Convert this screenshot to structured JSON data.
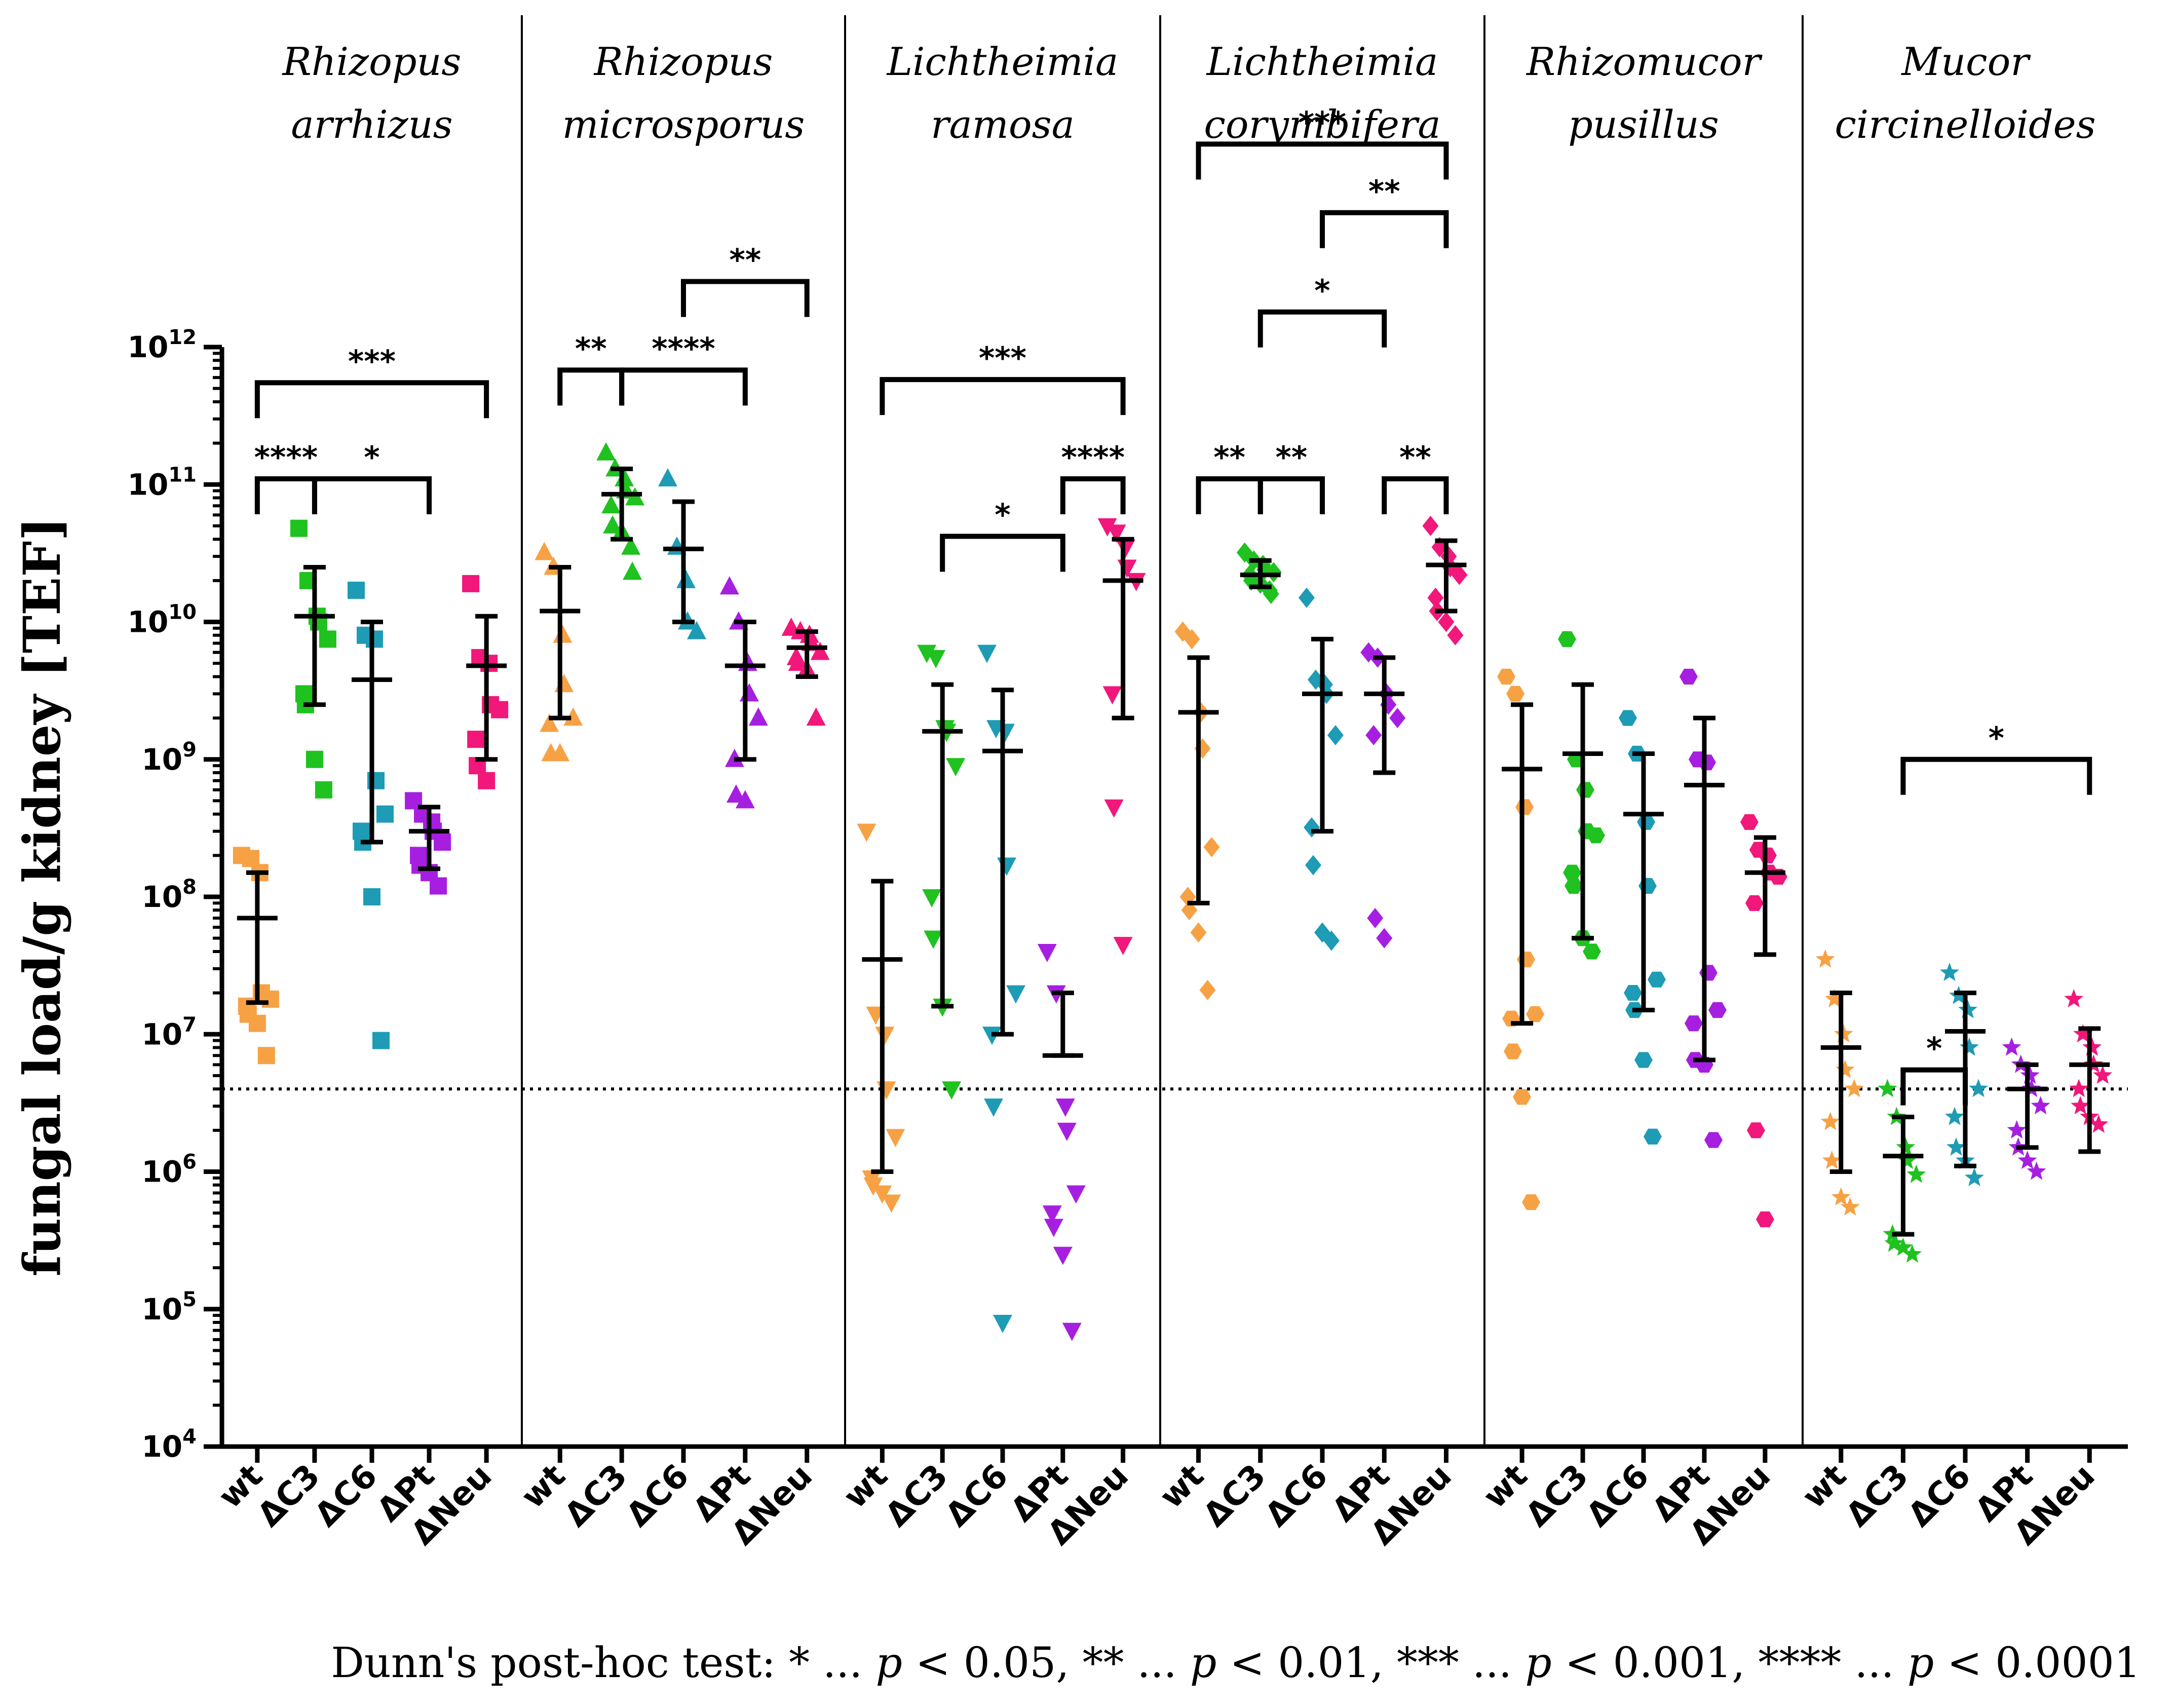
{
  "chart_data": {
    "type": "scatter",
    "title": "",
    "ylabel": "fungal load/g kidney [TEF]",
    "yscale": "log10",
    "ylim_exp": [
      4,
      12
    ],
    "ytick_base": "10",
    "ytick_exponents": [
      "4",
      "5",
      "6",
      "7",
      "8",
      "9",
      "10",
      "11",
      "12"
    ],
    "detection_limit": 4000000.0,
    "groups": [
      "wt",
      "ΔC3",
      "ΔC6",
      "ΔPt",
      "ΔNeu"
    ],
    "group_colors": [
      "#f7a145",
      "#1fc21f",
      "#1e9bb5",
      "#a61fe0",
      "#f2177a"
    ],
    "footnote": {
      "prefix": "Dunn's post-hoc test: * ... ",
      "p": "p",
      "t1": " < 0.05, ** ... ",
      "t2": " < 0.01, *** ... ",
      "t3": " < 0.001, **** ... ",
      "t4": " < 0.0001"
    },
    "panels": [
      {
        "name_line1": "Rhizopus",
        "name_line2": "arrhizus",
        "marker": "square",
        "series": [
          {
            "name": "wt",
            "median": 70000000.0,
            "q1": 17000000.0,
            "q3": 150000000.0,
            "points": [
              200000000.0,
              190000000.0,
              150000000.0,
              20000000.0,
              18000000.0,
              16000000.0,
              14000000.0,
              12000000.0,
              7000000.0
            ]
          },
          {
            "name": "ΔC3",
            "median": 11000000000.0,
            "q1": 2500000000.0,
            "q3": 25000000000.0,
            "points": [
              48000000000.0,
              20000000000.0,
              11000000000.0,
              10000000000.0,
              7500000000.0,
              3000000000.0,
              2500000000.0,
              1000000000.0,
              600000000.0
            ]
          },
          {
            "name": "ΔC6",
            "median": 3800000000.0,
            "q1": 250000000.0,
            "q3": 10000000000.0,
            "points": [
              17000000000.0,
              8000000000.0,
              7500000000.0,
              700000000.0,
              400000000.0,
              300000000.0,
              250000000.0,
              100000000.0,
              9000000.0
            ]
          },
          {
            "name": "ΔPt",
            "median": 300000000.0,
            "q1": 160000000.0,
            "q3": 450000000.0,
            "points": [
              500000000.0,
              400000000.0,
              350000000.0,
              300000000.0,
              250000000.0,
              200000000.0,
              170000000.0,
              150000000.0,
              120000000.0
            ]
          },
          {
            "name": "ΔNeu",
            "median": 4800000000.0,
            "q1": 1000000000.0,
            "q3": 11000000000.0,
            "points": [
              19000000000.0,
              5500000000.0,
              5000000000.0,
              2500000000.0,
              2300000000.0,
              1400000000.0,
              900000000.0,
              700000000.0
            ]
          }
        ],
        "sig": [
          {
            "a": 0,
            "b": 4,
            "y": 550000000000.0,
            "label": "***"
          },
          {
            "a": 0,
            "b": 1,
            "y": 110000000000.0,
            "label": "****"
          },
          {
            "a": 1,
            "b": 3,
            "y": 110000000000.0,
            "label": "*"
          }
        ]
      },
      {
        "name_line1": "Rhizopus",
        "name_line2": "microsporus",
        "marker": "triangle-up",
        "series": [
          {
            "name": "wt",
            "median": 12000000000.0,
            "q1": 2000000000.0,
            "q3": 25000000000.0,
            "points": [
              32000000000.0,
              25000000000.0,
              8000000000.0,
              3500000000.0,
              2000000000.0,
              1800000000.0,
              1100000000.0,
              1100000000.0
            ]
          },
          {
            "name": "ΔC3",
            "median": 85000000000.0,
            "q1": 40000000000.0,
            "q3": 130000000000.0,
            "points": [
              170000000000.0,
              130000000000.0,
              110000000000.0,
              90000000000.0,
              80000000000.0,
              70000000000.0,
              50000000000.0,
              45000000000.0,
              35000000000.0,
              23000000000.0
            ]
          },
          {
            "name": "ΔC6",
            "median": 34000000000.0,
            "q1": 10000000000.0,
            "q3": 75000000000.0,
            "points": [
              110000000000.0,
              35000000000.0,
              20000000000.0,
              10000000000.0,
              8500000000.0
            ]
          },
          {
            "name": "ΔPt",
            "median": 4800000000.0,
            "q1": 1000000000.0,
            "q3": 10000000000.0,
            "points": [
              18000000000.0,
              10000000000.0,
              5000000000.0,
              3000000000.0,
              2000000000.0,
              1000000000.0,
              550000000.0,
              500000000.0
            ]
          },
          {
            "name": "ΔNeu",
            "median": 6500000000.0,
            "q1": 4000000000.0,
            "q3": 8500000000.0,
            "points": [
              9000000000.0,
              8500000000.0,
              8000000000.0,
              7000000000.0,
              6000000000.0,
              5500000000.0,
              5000000000.0,
              4500000000.0,
              2000000000.0
            ]
          }
        ],
        "sig": [
          {
            "a": 2,
            "b": 4,
            "y": 3000000000000.0,
            "label": "**"
          },
          {
            "a": 0,
            "b": 1,
            "y": 680000000000.0,
            "label": "**"
          },
          {
            "a": 1,
            "b": 3,
            "y": 680000000000.0,
            "label": "****"
          }
        ]
      },
      {
        "name_line1": "Lichtheimia",
        "name_line2": "ramosa",
        "marker": "triangle-down",
        "series": [
          {
            "name": "wt",
            "median": 35000000.0,
            "q1": 1000000.0,
            "q3": 130000000.0,
            "points": [
              300000000.0,
              14000000.0,
              10000000.0,
              4000000.0,
              1800000.0,
              900000.0,
              800000.0,
              700000.0,
              600000.0
            ]
          },
          {
            "name": "ΔC3",
            "median": 1600000000.0,
            "q1": 16000000.0,
            "q3": 3500000000.0,
            "points": [
              6000000000.0,
              5500000000.0,
              1700000000.0,
              1600000000.0,
              900000000.0,
              100000000.0,
              50000000.0,
              16000000.0,
              4000000.0
            ]
          },
          {
            "name": "ΔC6",
            "median": 1150000000.0,
            "q1": 10000000.0,
            "q3": 3200000000.0,
            "points": [
              6000000000.0,
              1700000000.0,
              1600000000.0,
              170000000.0,
              20000000.0,
              10000000.0,
              3000000.0,
              80000.0
            ]
          },
          {
            "name": "ΔPt",
            "median": 7000000.0,
            "q1": 7000000.0,
            "q3": 20000000.0,
            "points": [
              40000000.0,
              20000000.0,
              3000000.0,
              2000000.0,
              700000.0,
              500000.0,
              400000.0,
              250000.0,
              70000.0
            ]
          },
          {
            "name": "ΔNeu",
            "median": 20000000000.0,
            "q1": 2000000000.0,
            "q3": 40000000000.0,
            "points": [
              50000000000.0,
              45000000000.0,
              35000000000.0,
              25000000000.0,
              20000000000.0,
              3000000000.0,
              450000000.0,
              45000000.0
            ]
          }
        ],
        "sig": [
          {
            "a": 0,
            "b": 4,
            "y": 580000000000.0,
            "label": "***"
          },
          {
            "a": 3,
            "b": 4,
            "y": 110000000000.0,
            "label": "****"
          },
          {
            "a": 1,
            "b": 3,
            "y": 42000000000.0,
            "label": "*"
          }
        ]
      },
      {
        "name_line1": "Lichtheimia",
        "name_line2": "corymbifera",
        "marker": "diamond",
        "series": [
          {
            "name": "wt",
            "median": 2200000000.0,
            "q1": 90000000.0,
            "q3": 5500000000.0,
            "points": [
              8500000000.0,
              7500000000.0,
              2200000000.0,
              1200000000.0,
              230000000.0,
              100000000.0,
              80000000.0,
              55000000.0,
              21000000.0
            ]
          },
          {
            "name": "ΔC3",
            "median": 22000000000.0,
            "q1": 18000000000.0,
            "q3": 28000000000.0,
            "points": [
              32000000000.0,
              28000000000.0,
              26000000000.0,
              24000000000.0,
              23000000000.0,
              22000000000.0,
              20000000000.0,
              19000000000.0,
              17000000000.0,
              16000000000.0
            ]
          },
          {
            "name": "ΔC6",
            "median": 3000000000.0,
            "q1": 300000000.0,
            "q3": 7500000000.0,
            "points": [
              15000000000.0,
              3800000000.0,
              3500000000.0,
              3000000000.0,
              1500000000.0,
              320000000.0,
              170000000.0,
              55000000.0,
              48000000.0
            ]
          },
          {
            "name": "ΔPt",
            "median": 3000000000.0,
            "q1": 800000000.0,
            "q3": 5500000000.0,
            "points": [
              6000000000.0,
              5500000000.0,
              3000000000.0,
              2500000000.0,
              2000000000.0,
              1500000000.0,
              70000000.0,
              50000000.0
            ]
          },
          {
            "name": "ΔNeu",
            "median": 26000000000.0,
            "q1": 12000000000.0,
            "q3": 39000000000.0,
            "points": [
              50000000000.0,
              35000000000.0,
              30000000000.0,
              25000000000.0,
              22000000000.0,
              15000000000.0,
              12000000000.0,
              10000000000.0,
              8000000000.0
            ]
          }
        ],
        "sig": [
          {
            "a": 0,
            "b": 4,
            "y": 30000000000000.0,
            "label": "***"
          },
          {
            "a": 2,
            "b": 4,
            "y": 9500000000000.0,
            "label": "**"
          },
          {
            "a": 1,
            "b": 3,
            "y": 1800000000000.0,
            "label": "*"
          },
          {
            "a": 0,
            "b": 1,
            "y": 110000000000.0,
            "label": "**"
          },
          {
            "a": 1,
            "b": 2,
            "y": 110000000000.0,
            "label": "**"
          },
          {
            "a": 3,
            "b": 4,
            "y": 110000000000.0,
            "label": "**"
          }
        ]
      },
      {
        "name_line1": "Rhizomucor",
        "name_line2": "pusillus",
        "marker": "hexagon",
        "series": [
          {
            "name": "wt",
            "median": 850000000.0,
            "q1": 12000000.0,
            "q3": 2500000000.0,
            "points": [
              4000000000.0,
              3000000000.0,
              450000000.0,
              35000000.0,
              14000000.0,
              13000000.0,
              7500000.0,
              3500000.0,
              600000.0
            ]
          },
          {
            "name": "ΔC3",
            "median": 1100000000.0,
            "q1": 50000000.0,
            "q3": 3500000000.0,
            "points": [
              7500000000.0,
              1000000000.0,
              600000000.0,
              300000000.0,
              280000000.0,
              150000000.0,
              120000000.0,
              50000000.0,
              40000000.0
            ]
          },
          {
            "name": "ΔC6",
            "median": 400000000.0,
            "q1": 15000000.0,
            "q3": 1100000000.0,
            "points": [
              2000000000.0,
              1100000000.0,
              350000000.0,
              120000000.0,
              25000000.0,
              20000000.0,
              15000000.0,
              6500000.0,
              1800000.0
            ]
          },
          {
            "name": "ΔPt",
            "median": 650000000.0,
            "q1": 6500000.0,
            "q3": 2000000000.0,
            "points": [
              4000000000.0,
              1000000000.0,
              950000000.0,
              28000000.0,
              15000000.0,
              12000000.0,
              6500000.0,
              6000000.0,
              1700000.0
            ]
          },
          {
            "name": "ΔNeu",
            "median": 150000000.0,
            "q1": 38000000.0,
            "q3": 270000000.0,
            "points": [
              350000000.0,
              220000000.0,
              200000000.0,
              150000000.0,
              140000000.0,
              90000000.0,
              2000000.0,
              450000.0
            ]
          }
        ],
        "sig": []
      },
      {
        "name_line1": "Mucor",
        "name_line2": "circinelloides",
        "marker": "star",
        "series": [
          {
            "name": "wt",
            "median": 8000000.0,
            "q1": 1000000.0,
            "q3": 20000000.0,
            "points": [
              35000000.0,
              18000000.0,
              10000000.0,
              5500000.0,
              4000000.0,
              2300000.0,
              1200000.0,
              650000.0,
              550000.0
            ]
          },
          {
            "name": "ΔC3",
            "median": 1300000.0,
            "q1": 350000.0,
            "q3": 2500000.0,
            "points": [
              4000000.0,
              2500000.0,
              1500000.0,
              1200000.0,
              950000.0,
              350000.0,
              300000.0,
              280000.0,
              250000.0
            ]
          },
          {
            "name": "ΔC6",
            "median": 10500000.0,
            "q1": 1100000.0,
            "q3": 20000000.0,
            "points": [
              28000000.0,
              19000000.0,
              15000000.0,
              8000000.0,
              4000000.0,
              2500000.0,
              1500000.0,
              1200000.0,
              900000.0
            ]
          },
          {
            "name": "ΔPt",
            "median": 4000000.0,
            "q1": 1500000.0,
            "q3": 6000000.0,
            "points": [
              8000000.0,
              6000000.0,
              5000000.0,
              4000000.0,
              3000000.0,
              2000000.0,
              1500000.0,
              1200000.0,
              1000000.0
            ]
          },
          {
            "name": "ΔNeu",
            "median": 6000000.0,
            "q1": 1400000.0,
            "q3": 11000000.0,
            "points": [
              18000000.0,
              10000000.0,
              8000000.0,
              6000000.0,
              5000000.0,
              4000000.0,
              3000000.0,
              2500000.0,
              2200000.0
            ]
          }
        ],
        "sig": [
          {
            "a": 1,
            "b": 4,
            "y": 1000000000.0,
            "label": "*"
          },
          {
            "a": 1,
            "b": 2,
            "y": 5500000.0,
            "label": "*"
          }
        ]
      }
    ]
  }
}
